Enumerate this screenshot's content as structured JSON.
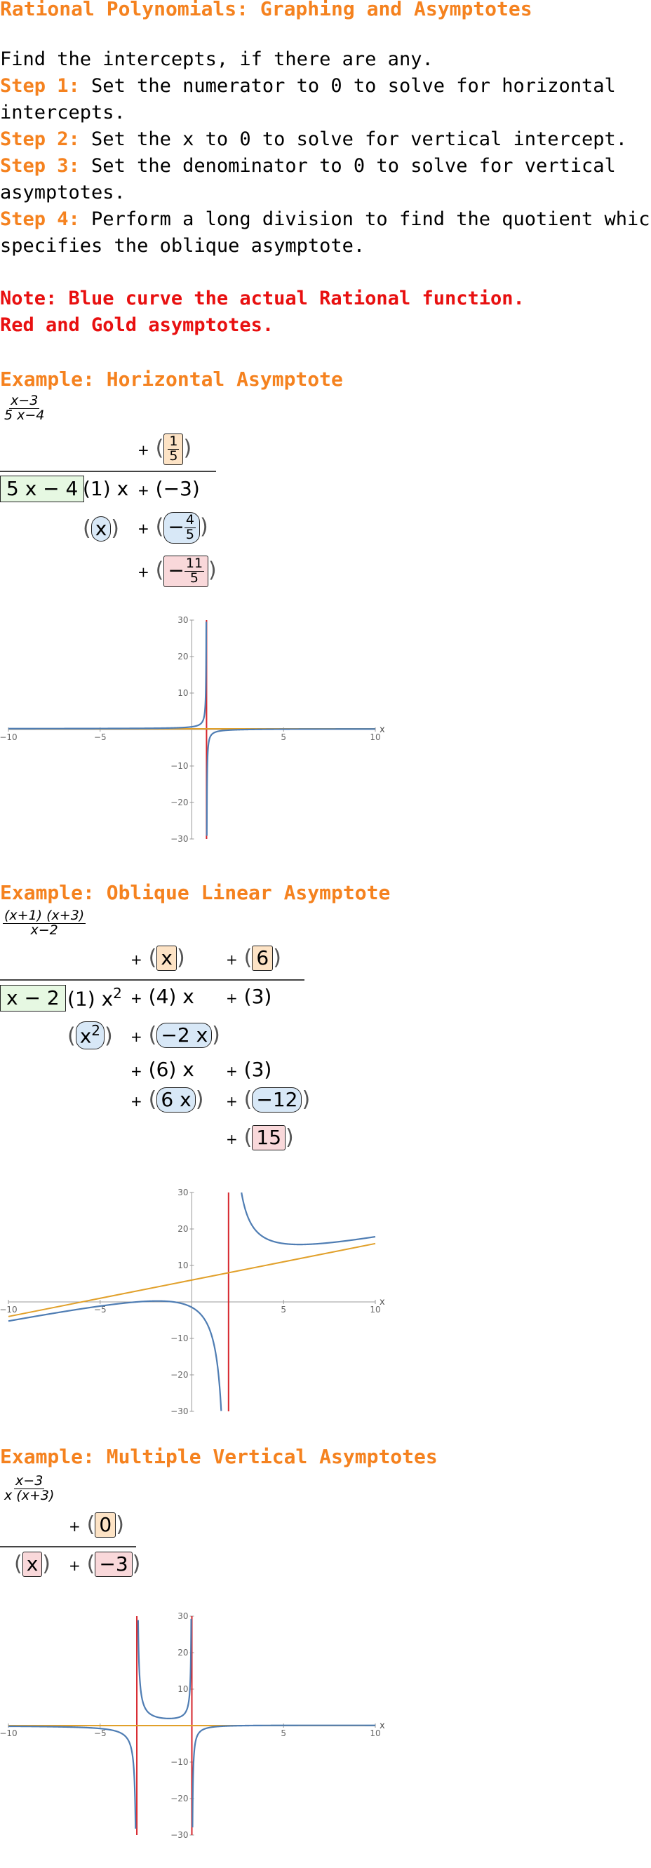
{
  "title": "Rational Polynomials: Graphing and Asymptotes",
  "intro": "Find the intercepts, if there are any.",
  "steps": [
    {
      "label": "Step 1:",
      "text_line1": " Set the numerator to 0 to solve for horizontal",
      "text_line2": "intercepts."
    },
    {
      "label": "Step 2:",
      "text_line1": " Set the x to 0 to solve for vertical intercept."
    },
    {
      "label": "Step 3:",
      "text_line1": " Set the denominator to 0 to solve for vertical",
      "text_line2": "asymptotes."
    },
    {
      "label": "Step 4:",
      "text_line1": " Perform a long division to find the quotient which",
      "text_line2": "specifies the oblique asymptote."
    }
  ],
  "note_line1": "Note: Blue curve the actual Rational function.",
  "note_line2": "Red and Gold asymptotes.",
  "examples": [
    {
      "heading": "Example: Horizontal Asymptote",
      "fraction_num": "x−3",
      "fraction_den": "5 x−4",
      "quotient_frac_num": "1",
      "quotient_frac_den": "5",
      "divisor": "5 x − 4",
      "dividend_t1": "(1) x",
      "dividend_t2": "−3",
      "sub_t1": "x",
      "sub_t2_num": "4",
      "sub_t2_den": "5",
      "rem_num": "11",
      "rem_den": "5"
    },
    {
      "heading": "Example: Oblique Linear Asymptote",
      "fraction_num": "(x+1) (x+3)",
      "fraction_den": "x−2",
      "q1": "x",
      "q2": "6",
      "divisor": "x − 2",
      "d1": "(1) x",
      "d1_exp": "2",
      "d2": "(4) x",
      "d3": "(3)",
      "s1": "x",
      "s1_exp": "2",
      "s2": "−2 x",
      "r1a": "(6) x",
      "r1b": "(3)",
      "s3": "6 x",
      "s4": "−12",
      "rem": "15"
    },
    {
      "heading": "Example: Multiple Vertical Asymptotes",
      "fraction_num": "x−3",
      "fraction_den": "x (x+3)",
      "q1": "0",
      "d1": "x",
      "d2": "−3"
    }
  ],
  "colors": {
    "heading": "#f5821f",
    "note": "#e81010",
    "curve": "#4f7db3",
    "vertical_asymptote": "#d6262c",
    "other_asymptote": "#e1a02a"
  },
  "chart_data": [
    {
      "type": "line",
      "xlim": [
        -10,
        10
      ],
      "ylim": [
        -30,
        30
      ],
      "xticks": [
        -10,
        -5,
        5,
        10
      ],
      "yticks": [
        -30,
        -20,
        -10,
        10,
        20,
        30
      ],
      "xlabel": "x",
      "ylabel": "",
      "series": [
        {
          "role": "curve",
          "formula": "(x-3)/(5*x-4)"
        },
        {
          "role": "vertical_asymptote",
          "x": 0.8
        },
        {
          "role": "horizontal_asymptote",
          "y": 0.2
        }
      ]
    },
    {
      "type": "line",
      "xlim": [
        -10,
        10
      ],
      "ylim": [
        -30,
        30
      ],
      "xticks": [
        -10,
        -5,
        5,
        10
      ],
      "yticks": [
        -30,
        -20,
        -10,
        10,
        20,
        30
      ],
      "xlabel": "x",
      "ylabel": "",
      "series": [
        {
          "role": "curve",
          "formula": "(x+1)*(x+3)/(x-2)"
        },
        {
          "role": "vertical_asymptote",
          "x": 2
        },
        {
          "role": "oblique_asymptote",
          "slope": 1,
          "intercept": 6
        }
      ]
    },
    {
      "type": "line",
      "xlim": [
        -10,
        10
      ],
      "ylim": [
        -30,
        30
      ],
      "xticks": [
        -10,
        -5,
        5,
        10
      ],
      "yticks": [
        -30,
        -20,
        -10,
        10,
        20,
        30
      ],
      "xlabel": "x",
      "ylabel": "",
      "series": [
        {
          "role": "curve",
          "formula": "(x-3)/(x*(x+3))"
        },
        {
          "role": "vertical_asymptote",
          "x": -3
        },
        {
          "role": "vertical_asymptote",
          "x": 0
        },
        {
          "role": "horizontal_asymptote",
          "y": 0
        }
      ]
    }
  ]
}
